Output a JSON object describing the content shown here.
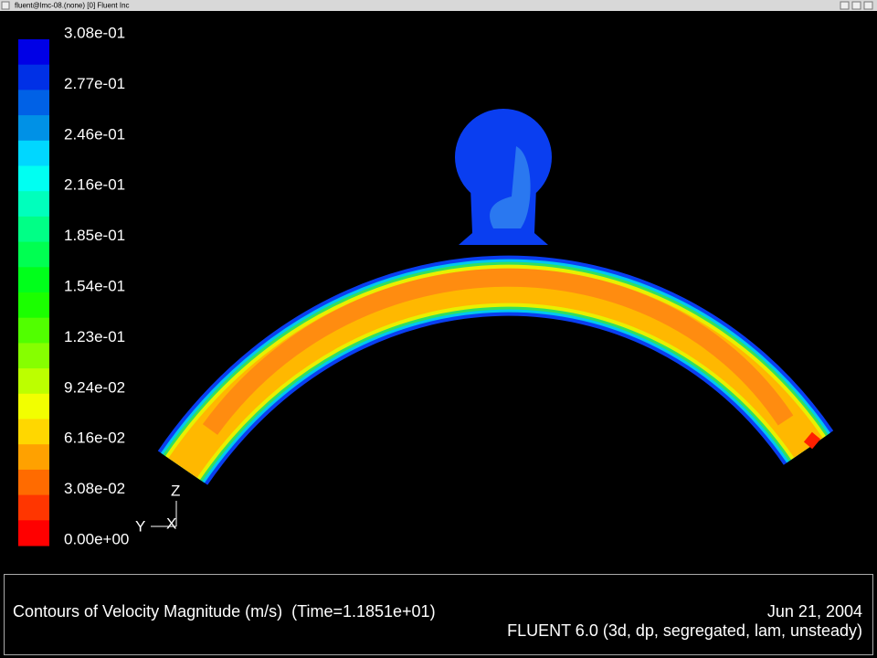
{
  "window": {
    "title": "fluent@lmc-08.(none) [0] Fluent Inc"
  },
  "colorbar": {
    "labels": [
      "3.08e-01",
      "2.77e-01",
      "2.46e-01",
      "2.16e-01",
      "1.85e-01",
      "1.54e-01",
      "1.23e-01",
      "9.24e-02",
      "6.16e-02",
      "3.08e-02",
      "0.00e+00"
    ]
  },
  "triad": {
    "z": "Z",
    "y": "Y",
    "x": "X"
  },
  "caption": {
    "title": "Contours of Velocity Magnitude (m/s)  (Time=1.1851e+01)",
    "date": "Jun 21, 2004",
    "version": "FLUENT 6.0 (3d, dp, segregated, lam, unsteady)"
  }
}
